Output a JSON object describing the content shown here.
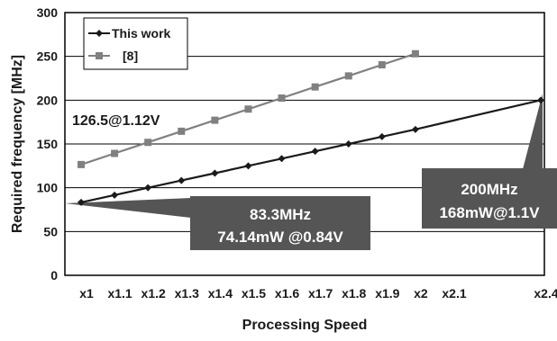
{
  "chart_data": {
    "type": "line",
    "xlabel": "Processing Speed",
    "ylabel": "Required frequency [MHz]",
    "x_ticks": [
      {
        "value": 1.0,
        "label": "x1"
      },
      {
        "value": 1.1,
        "label": "x1.1"
      },
      {
        "value": 1.2,
        "label": "x1.2"
      },
      {
        "value": 1.3,
        "label": "x1.3"
      },
      {
        "value": 1.4,
        "label": "x1.4"
      },
      {
        "value": 1.5,
        "label": "x1.5"
      },
      {
        "value": 1.6,
        "label": "x1.6"
      },
      {
        "value": 1.7,
        "label": "x1.7"
      },
      {
        "value": 1.8,
        "label": "x1.8"
      },
      {
        "value": 1.9,
        "label": "x1.9"
      },
      {
        "value": 2.0,
        "label": "x2"
      },
      {
        "value": 2.1,
        "label": "x2.1"
      },
      {
        "value": 2.4,
        "label": "x2.4"
      }
    ],
    "xlim": [
      0.9,
      2.4
    ],
    "ylim": [
      0,
      300
    ],
    "y_ticks": [
      0,
      50,
      100,
      150,
      200,
      250,
      300
    ],
    "grid": "horizontal",
    "legend_position": "top-left",
    "series": [
      {
        "name": "This work",
        "color": "#1a1a1a",
        "marker": "diamond",
        "x": [
          1.0,
          1.1,
          1.2,
          1.3,
          1.4,
          1.5,
          1.6,
          1.7,
          1.8,
          1.9,
          2.0,
          2.4
        ],
        "y": [
          83.3,
          91.6,
          100.0,
          108.3,
          116.6,
          125.0,
          133.3,
          141.6,
          150.0,
          158.3,
          166.6,
          200.0
        ]
      },
      {
        "name": "[8]",
        "color": "#808080",
        "marker": "square",
        "x": [
          1.0,
          1.1,
          1.2,
          1.3,
          1.4,
          1.5,
          1.6,
          1.7,
          1.8,
          1.9,
          2.0
        ],
        "y": [
          126.5,
          139.2,
          151.8,
          164.5,
          177.1,
          189.8,
          202.4,
          215.1,
          227.7,
          240.4,
          253.0
        ]
      }
    ],
    "annotations": {
      "gray_start": "126.5@1.12V",
      "black_start_line1": "83.3MHz",
      "black_start_line2": "74.14mW @0.84V",
      "black_end_line1": "200MHz",
      "black_end_line2": "168mW@1.1V"
    }
  }
}
